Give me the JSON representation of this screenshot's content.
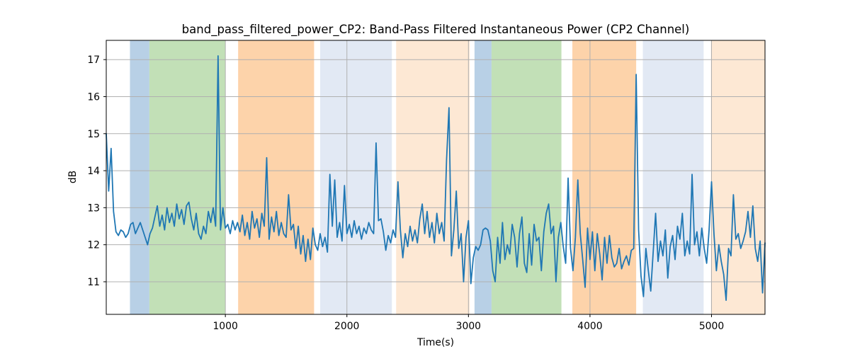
{
  "title": "band_pass_filtered_power_CP2: Band-Pass Filtered Instantaneous Power (CP2 Channel)",
  "chart_data": {
    "type": "line",
    "title": "band_pass_filtered_power_CP2: Band-Pass Filtered Instantaneous Power (CP2 Channel)",
    "xlabel": "Time(s)",
    "ylabel": "dB",
    "xlim": [
      20,
      5440
    ],
    "ylim": [
      10.12,
      17.52
    ],
    "xticks": [
      1000,
      2000,
      3000,
      4000,
      5000
    ],
    "yticks": [
      11,
      12,
      13,
      14,
      15,
      16,
      17
    ],
    "grid": true,
    "grid_color": "#b0b0b0",
    "spine_color": "#000000",
    "background_color": "#ffffff",
    "legend": "none",
    "background_bands": [
      {
        "t0": 215,
        "t1": 375,
        "color": "#b8d0e6",
        "name": "band-blue-1"
      },
      {
        "t0": 375,
        "t1": 1000,
        "color": "#c2e0b7",
        "name": "band-green-1"
      },
      {
        "t0": 1105,
        "t1": 1730,
        "color": "#fdd3aa",
        "name": "band-orange-1"
      },
      {
        "t0": 1780,
        "t1": 2370,
        "color": "#e2e9f4",
        "name": "band-lightblue-1"
      },
      {
        "t0": 2405,
        "t1": 3010,
        "color": "#fde8d4",
        "name": "band-lightorange-1"
      },
      {
        "t0": 3050,
        "t1": 3190,
        "color": "#b8d0e6",
        "name": "band-blue-2"
      },
      {
        "t0": 3190,
        "t1": 3765,
        "color": "#c2e0b7",
        "name": "band-green-2"
      },
      {
        "t0": 3855,
        "t1": 4380,
        "color": "#fdd3aa",
        "name": "band-orange-2"
      },
      {
        "t0": 4435,
        "t1": 4935,
        "color": "#e2e9f4",
        "name": "band-lightblue-2"
      },
      {
        "t0": 4995,
        "t1": 5440,
        "color": "#fde8d4",
        "name": "band-lightorange-2"
      }
    ],
    "series": [
      {
        "name": "band_pass_filtered_power_CP2",
        "color": "#1f77b4",
        "line_width": 1.8,
        "x": [
          20,
          40,
          60,
          80,
          100,
          120,
          140,
          160,
          180,
          200,
          220,
          240,
          260,
          280,
          300,
          320,
          340,
          360,
          380,
          400,
          420,
          440,
          460,
          480,
          500,
          520,
          540,
          560,
          580,
          600,
          620,
          640,
          660,
          680,
          700,
          720,
          740,
          760,
          780,
          800,
          820,
          840,
          860,
          880,
          900,
          920,
          940,
          960,
          980,
          1000,
          1020,
          1040,
          1060,
          1080,
          1100,
          1120,
          1140,
          1160,
          1180,
          1200,
          1220,
          1240,
          1260,
          1280,
          1300,
          1320,
          1340,
          1360,
          1380,
          1400,
          1420,
          1440,
          1460,
          1480,
          1500,
          1520,
          1540,
          1560,
          1580,
          1600,
          1620,
          1640,
          1660,
          1680,
          1700,
          1720,
          1740,
          1760,
          1780,
          1800,
          1820,
          1840,
          1860,
          1880,
          1900,
          1920,
          1940,
          1960,
          1980,
          2000,
          2020,
          2040,
          2060,
          2080,
          2100,
          2120,
          2140,
          2160,
          2180,
          2200,
          2220,
          2240,
          2260,
          2280,
          2300,
          2320,
          2340,
          2360,
          2380,
          2400,
          2420,
          2440,
          2460,
          2480,
          2500,
          2520,
          2540,
          2560,
          2580,
          2600,
          2620,
          2640,
          2660,
          2680,
          2700,
          2720,
          2740,
          2760,
          2780,
          2800,
          2820,
          2840,
          2860,
          2880,
          2900,
          2920,
          2940,
          2960,
          2980,
          3000,
          3020,
          3040,
          3060,
          3080,
          3100,
          3120,
          3140,
          3160,
          3180,
          3200,
          3220,
          3240,
          3260,
          3280,
          3300,
          3320,
          3340,
          3360,
          3380,
          3400,
          3420,
          3440,
          3460,
          3480,
          3500,
          3520,
          3540,
          3560,
          3580,
          3600,
          3620,
          3640,
          3660,
          3680,
          3700,
          3720,
          3740,
          3760,
          3780,
          3800,
          3820,
          3840,
          3860,
          3880,
          3900,
          3920,
          3940,
          3960,
          3980,
          4000,
          4020,
          4040,
          4060,
          4080,
          4100,
          4120,
          4140,
          4160,
          4180,
          4200,
          4220,
          4240,
          4260,
          4280,
          4300,
          4320,
          4340,
          4360,
          4380,
          4400,
          4420,
          4440,
          4460,
          4480,
          4500,
          4520,
          4540,
          4560,
          4580,
          4600,
          4620,
          4640,
          4660,
          4680,
          4700,
          4720,
          4740,
          4760,
          4780,
          4800,
          4820,
          4840,
          4860,
          4880,
          4900,
          4920,
          4940,
          4960,
          4980,
          5000,
          5020,
          5040,
          5060,
          5080,
          5100,
          5120,
          5140,
          5160,
          5180,
          5200,
          5220,
          5240,
          5260,
          5280,
          5300,
          5320,
          5340,
          5360,
          5380,
          5400,
          5420,
          5440
        ],
        "y": [
          15.0,
          13.45,
          14.6,
          12.9,
          12.35,
          12.25,
          12.4,
          12.35,
          12.2,
          12.3,
          12.55,
          12.6,
          12.3,
          12.45,
          12.6,
          12.4,
          12.2,
          12.0,
          12.3,
          12.45,
          12.75,
          13.05,
          12.5,
          12.8,
          12.4,
          13.0,
          12.6,
          12.85,
          12.5,
          13.1,
          12.7,
          12.95,
          12.55,
          13.05,
          13.15,
          12.7,
          12.4,
          12.85,
          12.3,
          12.15,
          12.5,
          12.3,
          12.9,
          12.6,
          13.0,
          12.5,
          17.1,
          12.4,
          13.0,
          12.45,
          12.55,
          12.3,
          12.65,
          12.4,
          12.6,
          12.35,
          12.8,
          12.25,
          12.6,
          12.15,
          12.9,
          12.45,
          12.7,
          12.2,
          12.85,
          12.5,
          14.35,
          12.15,
          12.75,
          12.35,
          12.9,
          12.25,
          12.6,
          12.3,
          12.2,
          13.35,
          12.4,
          12.55,
          11.9,
          12.5,
          11.75,
          12.25,
          11.55,
          12.15,
          11.6,
          12.45,
          12.0,
          11.85,
          12.3,
          11.95,
          12.2,
          11.8,
          13.9,
          12.5,
          13.75,
          12.2,
          12.6,
          12.1,
          13.6,
          12.3,
          12.55,
          12.2,
          12.65,
          12.3,
          12.5,
          12.15,
          12.45,
          12.3,
          12.6,
          12.4,
          12.3,
          14.75,
          12.65,
          12.7,
          12.35,
          11.85,
          12.25,
          12.05,
          12.4,
          12.2,
          13.7,
          12.4,
          11.65,
          12.3,
          11.95,
          12.5,
          12.1,
          12.4,
          12.05,
          12.7,
          13.1,
          12.3,
          12.9,
          12.2,
          12.6,
          12.05,
          12.85,
          12.3,
          12.6,
          12.1,
          14.3,
          15.7,
          11.7,
          12.4,
          13.45,
          11.9,
          12.3,
          11.0,
          12.2,
          12.65,
          10.95,
          11.65,
          11.95,
          11.85,
          12.0,
          12.4,
          12.45,
          12.4,
          12.1,
          11.3,
          11.0,
          12.2,
          11.5,
          12.6,
          11.6,
          12.0,
          11.75,
          12.55,
          12.2,
          11.4,
          12.3,
          12.75,
          11.5,
          11.25,
          12.3,
          11.45,
          12.55,
          12.1,
          12.2,
          11.3,
          12.35,
          12.85,
          13.1,
          12.3,
          12.5,
          11.0,
          12.2,
          12.6,
          11.95,
          11.5,
          13.8,
          11.9,
          11.3,
          12.2,
          13.75,
          12.3,
          11.6,
          10.85,
          12.45,
          11.6,
          12.35,
          11.3,
          12.3,
          11.75,
          11.05,
          12.2,
          11.5,
          12.25,
          11.65,
          11.4,
          11.5,
          11.9,
          11.35,
          11.55,
          11.7,
          11.45,
          11.85,
          11.9,
          16.6,
          12.4,
          11.15,
          10.6,
          11.9,
          11.3,
          10.75,
          11.8,
          12.85,
          11.55,
          12.1,
          11.7,
          12.4,
          11.1,
          11.95,
          12.25,
          11.6,
          12.5,
          12.15,
          12.85,
          11.7,
          12.1,
          11.75,
          13.9,
          12.0,
          12.35,
          11.7,
          12.45,
          11.9,
          11.5,
          12.4,
          13.7,
          12.3,
          11.3,
          12.0,
          11.55,
          11.2,
          10.5,
          11.9,
          11.7,
          13.35,
          12.15,
          12.3,
          11.9,
          12.1,
          12.35,
          12.9,
          12.2,
          13.05,
          11.9,
          11.55,
          12.1,
          10.7,
          12.05
        ]
      }
    ]
  }
}
